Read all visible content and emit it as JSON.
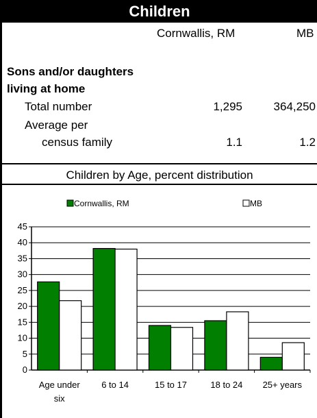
{
  "table": {
    "title": "Children",
    "col1": "Cornwallis, RM",
    "col2": "MB",
    "section_line1": "Sons and/or daughters",
    "section_line2": "living at home",
    "rows": [
      {
        "label": "Total number",
        "v1": "1,295",
        "v2": "364,250"
      },
      {
        "label1": "Average per",
        "label2": "census family",
        "v1": "1.1",
        "v2": "1.2"
      }
    ]
  },
  "chart_data": {
    "type": "bar",
    "title": "Children by Age, percent distribution",
    "categories": [
      "Age under six",
      "6 to 14",
      "15 to 17",
      "18 to 24",
      "25+ years"
    ],
    "series": [
      {
        "name": "Cornwallis, RM",
        "values": [
          27.7,
          38.2,
          14.0,
          15.5,
          4.0
        ],
        "color": "#007f00"
      },
      {
        "name": "MB",
        "values": [
          21.8,
          38.0,
          13.4,
          18.3,
          8.6
        ],
        "color": "#ffffff"
      }
    ],
    "ylim": [
      0,
      45
    ],
    "yticks": [
      "0",
      "5",
      "10",
      "15",
      "20",
      "25",
      "30",
      "35",
      "40",
      "45"
    ],
    "grid": true,
    "legend": "top"
  }
}
